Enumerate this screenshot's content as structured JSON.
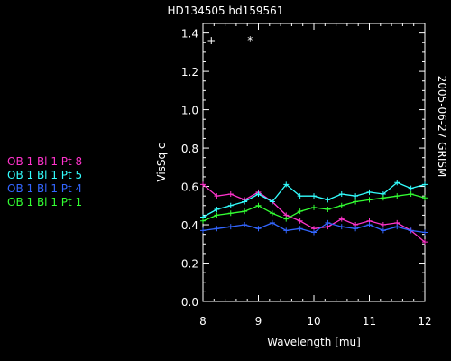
{
  "title": "HD134505 hd159561",
  "side_label": "2005-06-27 GRISM",
  "legend": [
    {
      "label": "OB 1 Bl 1 Pt 8",
      "color": "#ff33cc"
    },
    {
      "label": "OB 1 Bl 1 Pt 5",
      "color": "#33ffff"
    },
    {
      "label": "OB 1 Bl 1 Pt 4",
      "color": "#3366ff"
    },
    {
      "label": "OB 1 Bl 1 Pt 1",
      "color": "#33ff33"
    }
  ],
  "chart_data": {
    "type": "line",
    "xlabel": "Wavelength [mu]",
    "ylabel": "VisSq c",
    "xlim": [
      8,
      12
    ],
    "ylim": [
      0,
      1.45
    ],
    "xticks": [
      "8",
      "9",
      "10",
      "11",
      "12"
    ],
    "yticks": [
      "0.0",
      "0.2",
      "0.4",
      "0.6",
      "0.8",
      "1.0",
      "1.2",
      "1.4"
    ],
    "x": [
      8.0,
      8.25,
      8.5,
      8.75,
      9.0,
      9.25,
      9.5,
      9.75,
      10.0,
      10.25,
      10.5,
      10.75,
      11.0,
      11.25,
      11.5,
      11.75,
      12.0
    ],
    "series": [
      {
        "name": "OB 1 Bl 1 Pt 8",
        "color": "#ff33cc",
        "values": [
          0.61,
          0.55,
          0.56,
          0.53,
          0.57,
          0.52,
          0.45,
          0.42,
          0.38,
          0.39,
          0.43,
          0.4,
          0.42,
          0.4,
          0.41,
          0.37,
          0.31
        ]
      },
      {
        "name": "OB 1 Bl 1 Pt 5",
        "color": "#33ffff",
        "values": [
          0.44,
          0.48,
          0.5,
          0.52,
          0.56,
          0.52,
          0.61,
          0.55,
          0.55,
          0.53,
          0.56,
          0.55,
          0.57,
          0.56,
          0.62,
          0.59,
          0.61
        ]
      },
      {
        "name": "OB 1 Bl 1 Pt 4",
        "color": "#3366ff",
        "values": [
          0.37,
          0.38,
          0.39,
          0.4,
          0.38,
          0.41,
          0.37,
          0.38,
          0.36,
          0.41,
          0.39,
          0.38,
          0.4,
          0.37,
          0.39,
          0.37,
          0.36
        ]
      },
      {
        "name": "OB 1 Bl 1 Pt 1",
        "color": "#33ff33",
        "values": [
          0.42,
          0.45,
          0.46,
          0.47,
          0.5,
          0.46,
          0.43,
          0.47,
          0.49,
          0.48,
          0.5,
          0.52,
          0.53,
          0.54,
          0.55,
          0.56,
          0.54
        ]
      }
    ],
    "markers": [
      {
        "symbol": "+",
        "x": 8.15,
        "y": 1.37
      },
      {
        "symbol": "*",
        "x": 8.85,
        "y": 1.37
      }
    ]
  }
}
